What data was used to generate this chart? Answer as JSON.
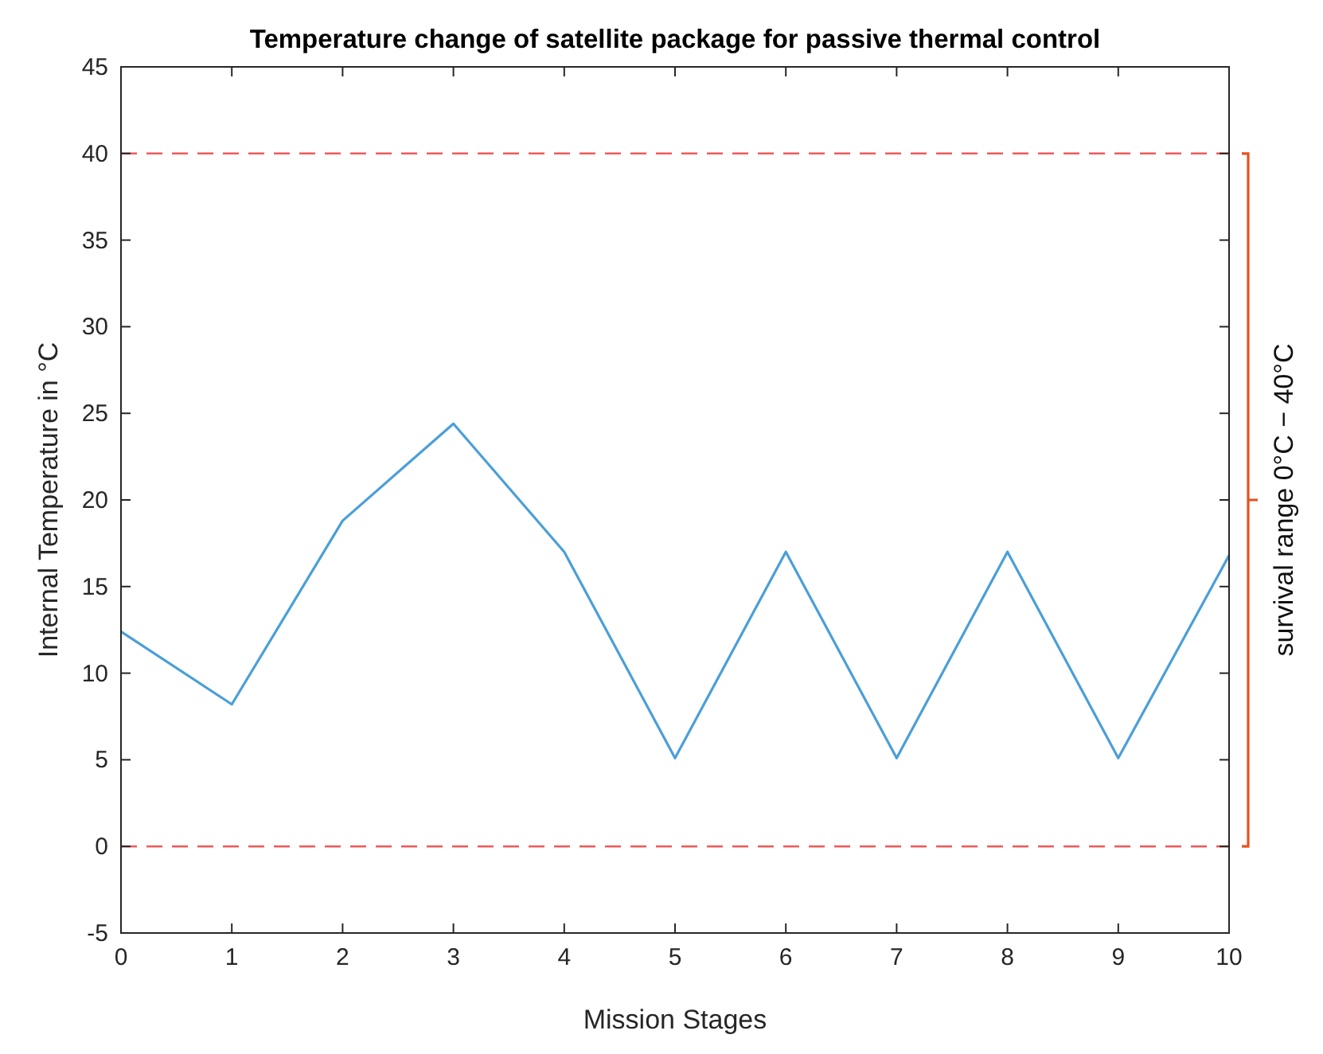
{
  "chart_data": {
    "type": "line",
    "title": "Temperature change of satellite package for passive thermal control",
    "xlabel": "Mission Stages",
    "ylabel": "Internal Temperature in °C",
    "x": [
      0,
      1,
      2,
      3,
      4,
      5,
      6,
      7,
      8,
      9,
      10
    ],
    "series": [
      {
        "color": "#4a9fd8",
        "values": [
          12.4,
          8.2,
          18.8,
          24.4,
          17,
          5.1,
          17,
          5.1,
          17,
          5.1,
          16.8
        ]
      }
    ],
    "xlim": [
      0,
      10
    ],
    "xticks": [
      0,
      1,
      2,
      3,
      4,
      5,
      6,
      7,
      8,
      9,
      10
    ],
    "ylim": [
      -5,
      45
    ],
    "yticks": [
      -5,
      0,
      5,
      10,
      15,
      20,
      25,
      30,
      35,
      40,
      45
    ],
    "ref_lines": [
      {
        "axis": "y",
        "value": 0,
        "color": "#f05a5a",
        "line_style": "dashed"
      },
      {
        "axis": "y",
        "value": 40,
        "color": "#f05a5a",
        "line_style": "dashed"
      }
    ],
    "annotations": [
      "survival range 0°C − 40°C"
    ],
    "grid": false,
    "marker": "none",
    "line_style": "solid"
  }
}
